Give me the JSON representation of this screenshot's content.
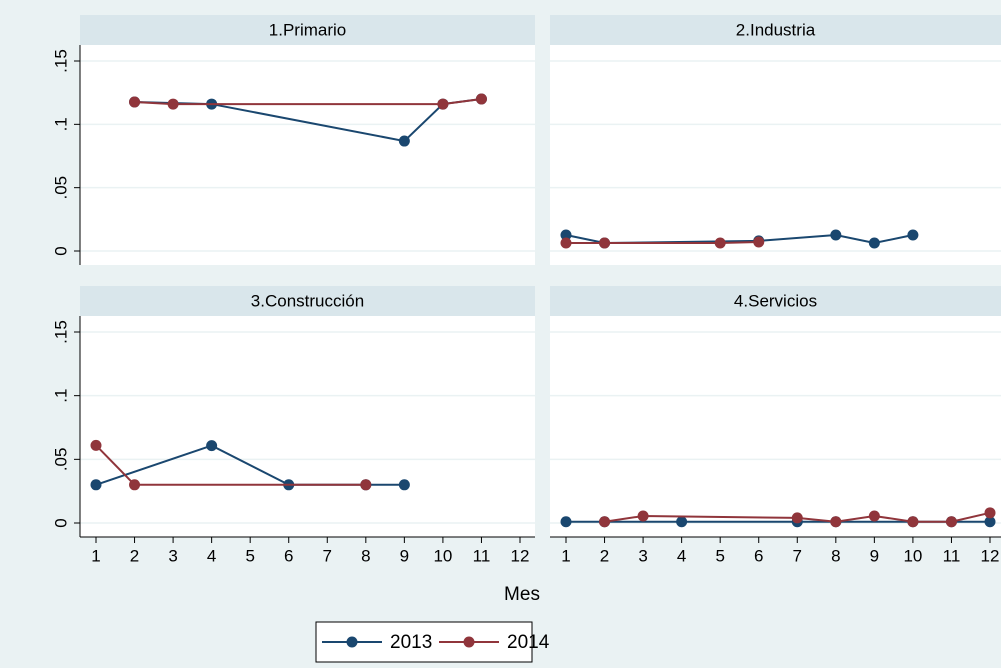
{
  "chart_data": {
    "type": "line",
    "xlabel": "Mes",
    "xlim": [
      0.6,
      12.4
    ],
    "xticks": [
      1,
      2,
      3,
      4,
      5,
      6,
      7,
      8,
      9,
      10,
      11,
      12
    ],
    "ylim": [
      -0.008,
      0.16
    ],
    "yticks": [
      0,
      {
        "value": 0.05,
        "label": ".05"
      },
      {
        "value": 0.1,
        "label": ".1"
      },
      {
        "value": 0.15,
        "label": ".15"
      }
    ],
    "grid": true,
    "series": [
      {
        "name": "2013",
        "color": "#1a476f"
      },
      {
        "name": "2014",
        "color": "#90353b"
      }
    ],
    "panels": [
      {
        "title": "1.Primario",
        "lines": [
          {
            "x": [
              2,
              4,
              9,
              10,
              11
            ],
            "values": [
              0.1176,
              0.116,
              0.0868,
              0.116,
              0.12
            ]
          },
          {
            "x": [
              2,
              3,
              10,
              11
            ],
            "values": [
              0.1176,
              0.116,
              0.116,
              0.12
            ]
          }
        ]
      },
      {
        "title": "2.Industria",
        "lines": [
          {
            "x": [
              1,
              2,
              6,
              8,
              9,
              10
            ],
            "values": [
              0.0126,
              0.0063,
              0.008,
              0.0126,
              0.0063,
              0.0126
            ]
          },
          {
            "x": [
              1,
              2,
              5,
              6
            ],
            "values": [
              0.0063,
              0.0063,
              0.0063,
              0.0071
            ]
          }
        ]
      },
      {
        "title": "3.Construcción",
        "lines": [
          {
            "x": [
              1,
              4,
              6,
              8,
              9
            ],
            "values": [
              0.03,
              0.0608,
              0.03,
              0.03,
              0.03
            ]
          },
          {
            "x": [
              1,
              2,
              8
            ],
            "values": [
              0.061,
              0.03,
              0.03
            ]
          }
        ]
      },
      {
        "title": "4.Servicios",
        "lines": [
          {
            "x": [
              1,
              2,
              4,
              7,
              8,
              10,
              11,
              12
            ],
            "values": [
              0.001,
              0.001,
              0.001,
              0.001,
              0.001,
              0.001,
              0.001,
              0.001
            ]
          },
          {
            "x": [
              2,
              3,
              7,
              8,
              9,
              10,
              11,
              12
            ],
            "values": [
              0.001,
              0.0055,
              0.004,
              0.001,
              0.0055,
              0.001,
              0.001,
              0.008
            ]
          }
        ]
      }
    ]
  }
}
